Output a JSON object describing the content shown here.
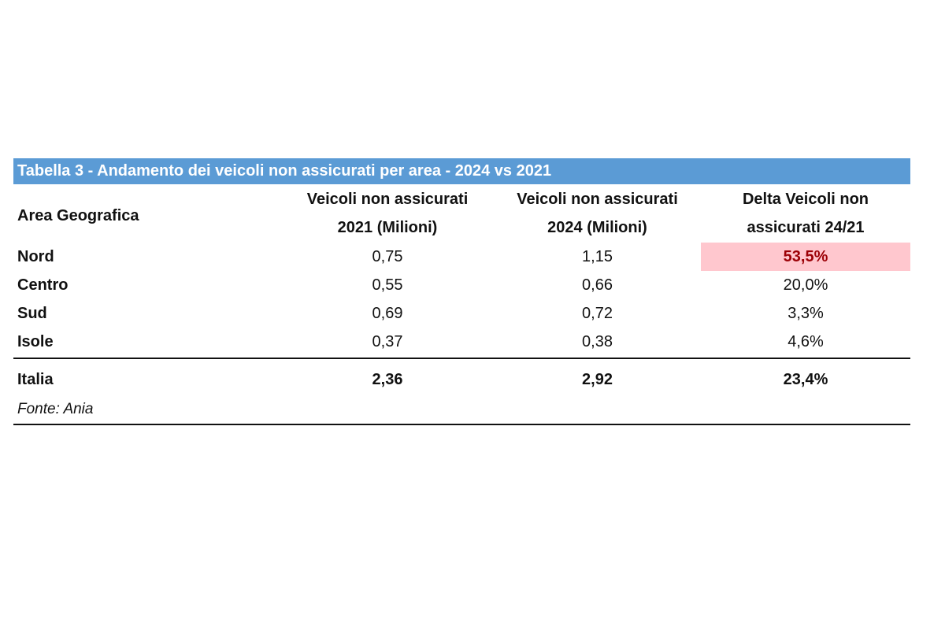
{
  "table": {
    "title": "Tabella 3 - Andamento dei veicoli non assicurati per area - 2024 vs 2021",
    "headers": {
      "area": "Area Geografica",
      "col2021_line1": "Veicoli non assicurati",
      "col2021_line2": "2021 (Milioni)",
      "col2024_line1": "Veicoli non assicurati",
      "col2024_line2": "2024 (Milioni)",
      "delta_line1": "Delta Veicoli non",
      "delta_line2": "assicurati 24/21"
    },
    "rows": [
      {
        "area": "Nord",
        "v2021": "0,75",
        "v2024": "1,15",
        "delta": "53,5%"
      },
      {
        "area": "Centro",
        "v2021": "0,55",
        "v2024": "0,66",
        "delta": "20,0%"
      },
      {
        "area": "Sud",
        "v2021": "0,69",
        "v2024": "0,72",
        "delta": "3,3%"
      },
      {
        "area": "Isole",
        "v2021": "0,37",
        "v2024": "0,38",
        "delta": "4,6%"
      }
    ],
    "total": {
      "area": "Italia",
      "v2021": "2,36",
      "v2024": "2,92",
      "delta": "23,4%"
    },
    "source": "Fonte: Ania",
    "colors": {
      "title_bar": "#5b9bd5",
      "highlight_bg": "#ffc7ce",
      "highlight_text": "#9c0006"
    }
  }
}
